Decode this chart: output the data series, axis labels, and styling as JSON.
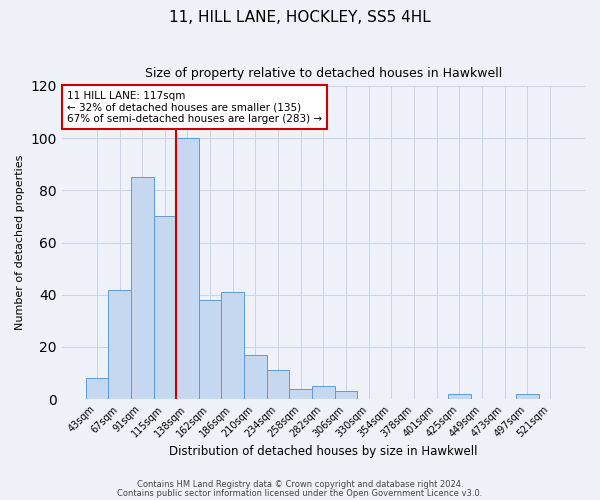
{
  "title": "11, HILL LANE, HOCKLEY, SS5 4HL",
  "subtitle": "Size of property relative to detached houses in Hawkwell",
  "xlabel": "Distribution of detached houses by size in Hawkwell",
  "ylabel": "Number of detached properties",
  "bar_labels": [
    "43sqm",
    "67sqm",
    "91sqm",
    "115sqm",
    "138sqm",
    "162sqm",
    "186sqm",
    "210sqm",
    "234sqm",
    "258sqm",
    "282sqm",
    "306sqm",
    "330sqm",
    "354sqm",
    "378sqm",
    "401sqm",
    "425sqm",
    "449sqm",
    "473sqm",
    "497sqm",
    "521sqm"
  ],
  "bar_heights": [
    8,
    42,
    85,
    70,
    100,
    38,
    41,
    17,
    11,
    4,
    5,
    3,
    0,
    0,
    0,
    0,
    2,
    0,
    0,
    2,
    0
  ],
  "bar_color": "#c5d8f0",
  "bar_edge_color": "#5b9bd5",
  "ylim": [
    0,
    120
  ],
  "yticks": [
    0,
    20,
    40,
    60,
    80,
    100,
    120
  ],
  "property_line_color": "#cc0000",
  "annotation_title": "11 HILL LANE: 117sqm",
  "annotation_line1": "← 32% of detached houses are smaller (135)",
  "annotation_line2": "67% of semi-detached houses are larger (283) →",
  "annotation_box_color": "#cc0000",
  "footnote1": "Contains HM Land Registry data © Crown copyright and database right 2024.",
  "footnote2": "Contains public sector information licensed under the Open Government Licence v3.0.",
  "background_color": "#eef2f8",
  "plot_background": "#eef2f8",
  "grid_color": "#c8d4e8"
}
